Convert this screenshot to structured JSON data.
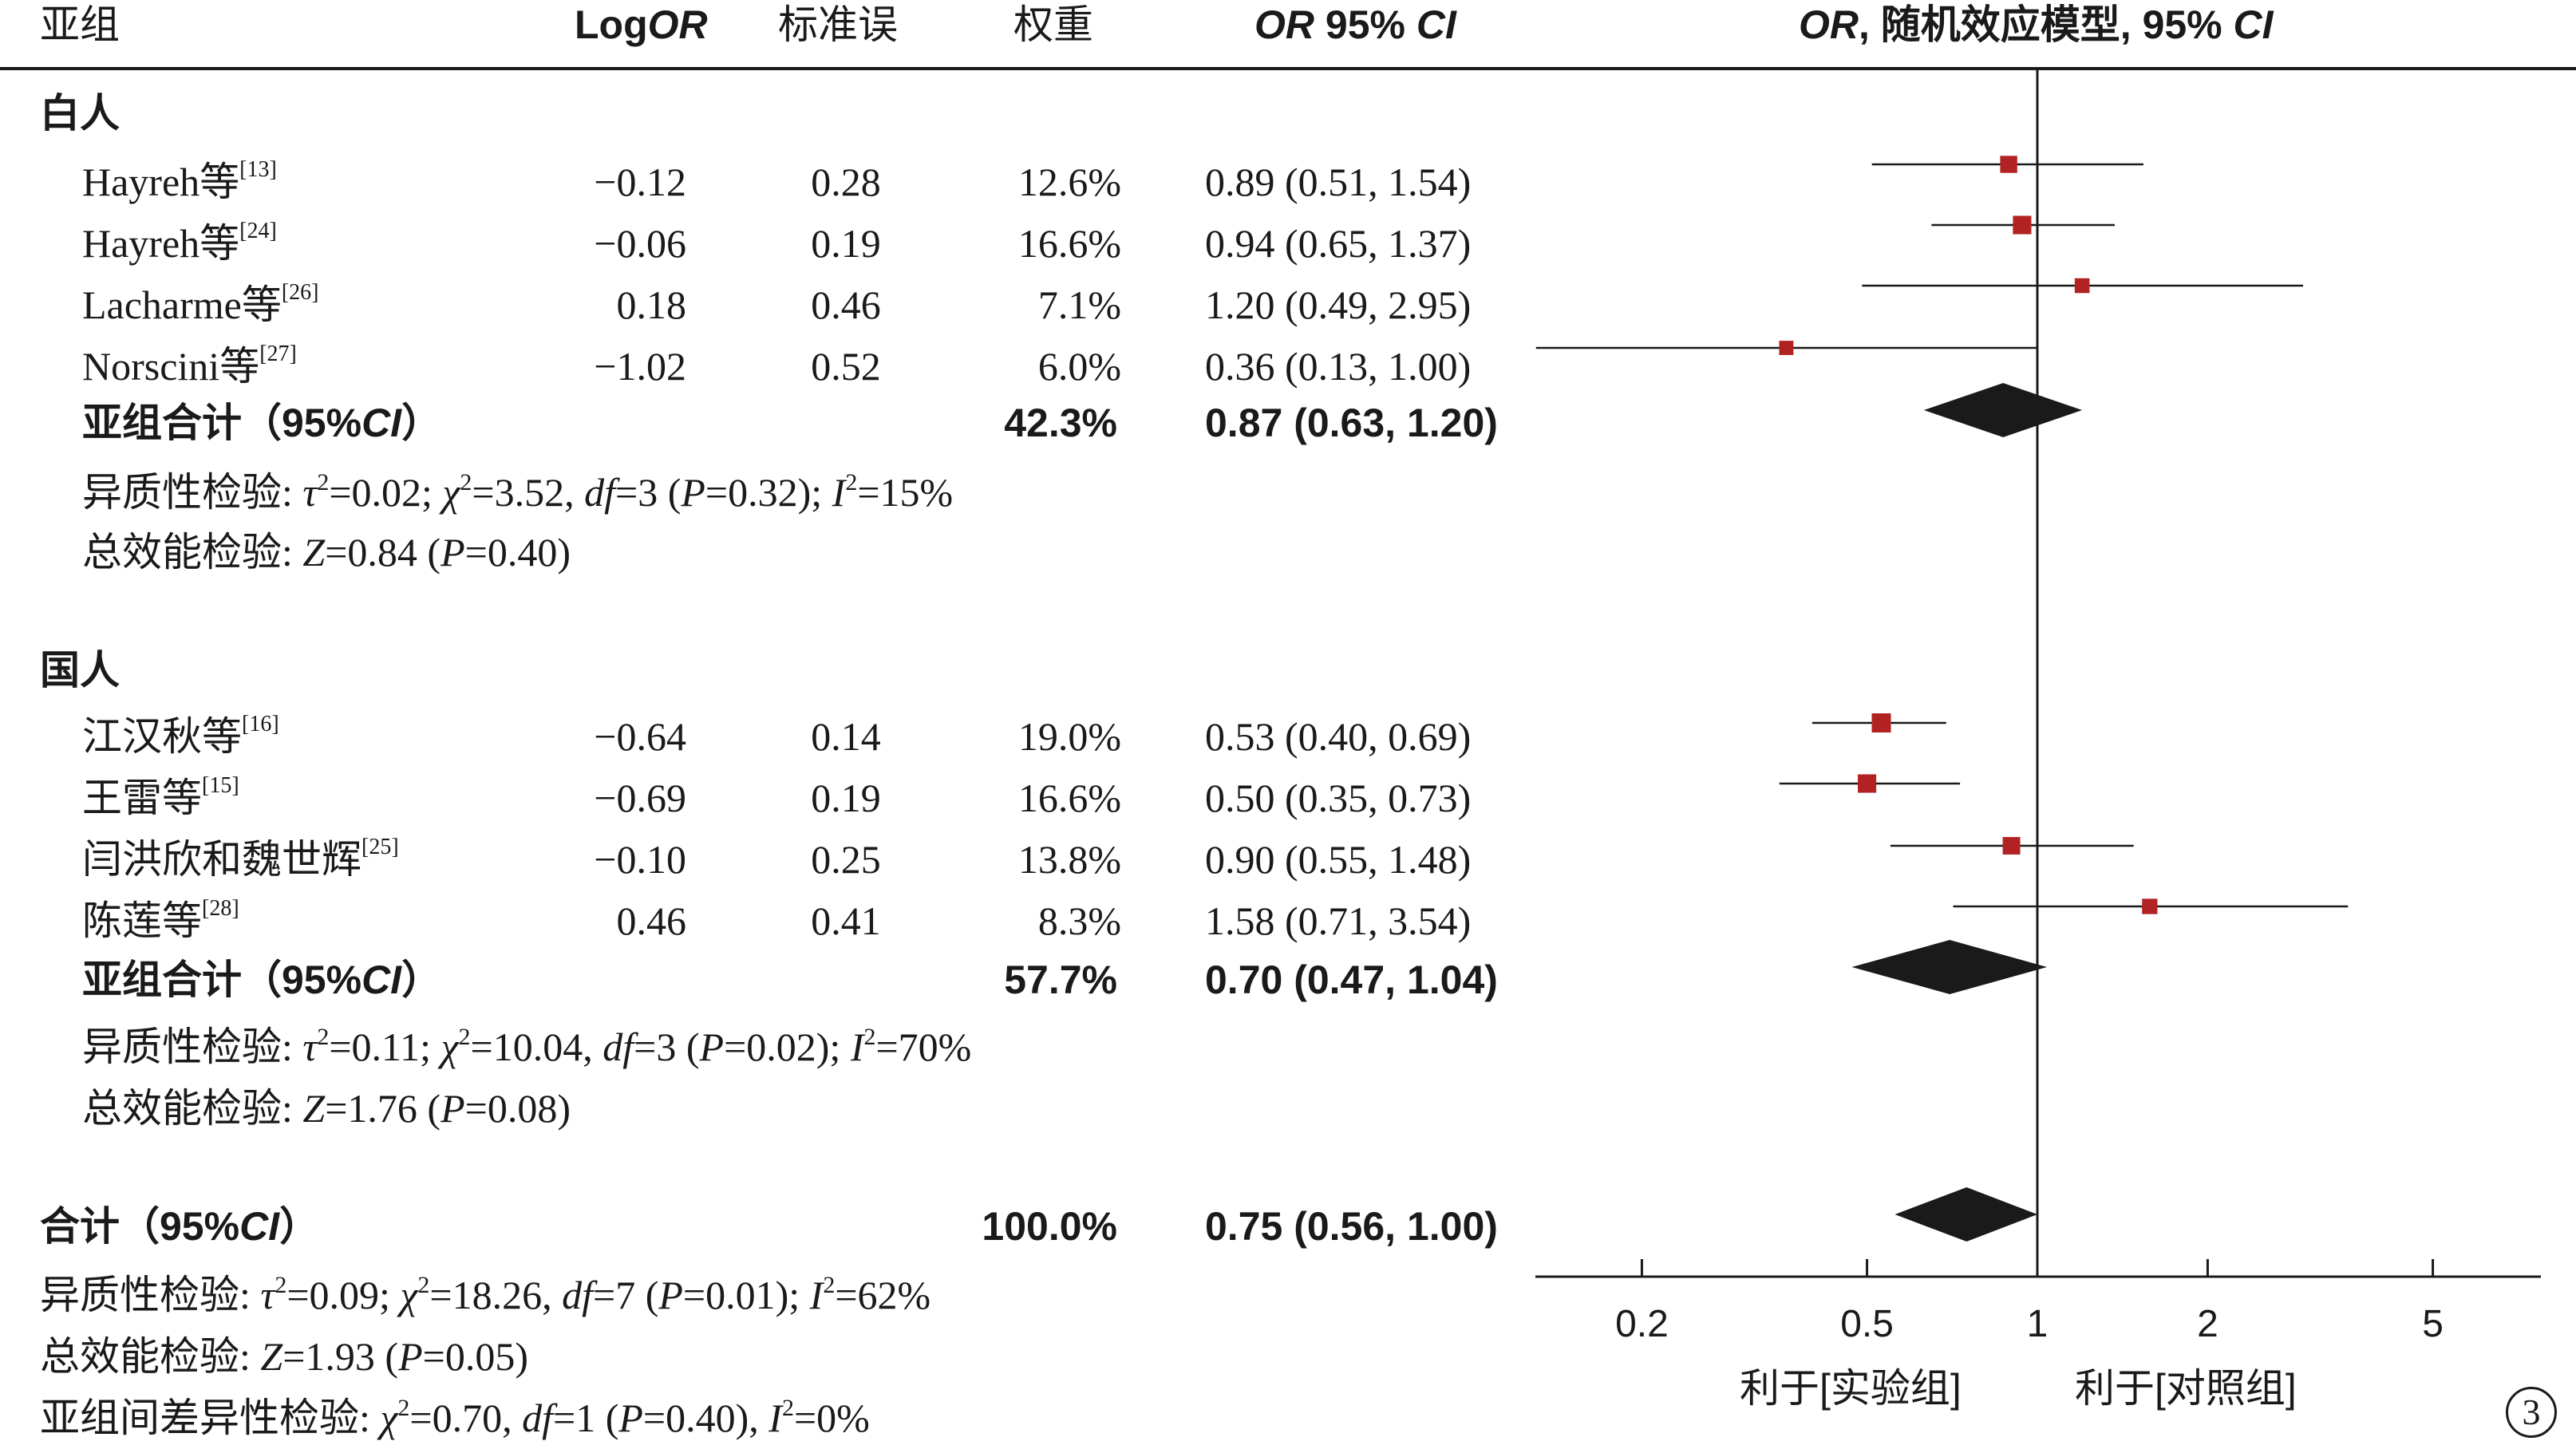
{
  "header": {
    "subgroup": "亚组",
    "logor_prefix": "Log",
    "logor_italic": "OR",
    "se": "标准误",
    "weight": "权重",
    "ci_italic": "OR",
    "ci_rest": " 95% ",
    "ci_ci": "CI",
    "plot_italic": "OR",
    "plot_rest": ", 随机效应模型, 95% ",
    "plot_ci": "CI"
  },
  "groups": [
    {
      "name": "白人",
      "studies": [
        {
          "name": "Hayreh等",
          "ref": "[13]",
          "logor": "−0.12",
          "se": "0.28",
          "weight": "12.6%",
          "ci": "0.89 (0.51, 1.54)"
        },
        {
          "name": "Hayreh等",
          "ref": "[24]",
          "logor": "−0.06",
          "se": "0.19",
          "weight": "16.6%",
          "ci": "0.94 (0.65, 1.37)"
        },
        {
          "name": "Lacharme等",
          "ref": "[26]",
          "logor": "0.18",
          "se": "0.46",
          "weight": "7.1%",
          "ci": "1.20 (0.49, 2.95)"
        },
        {
          "name": "Norscini等",
          "ref": "[27]",
          "logor": "−1.02",
          "se": "0.52",
          "weight": "6.0%",
          "ci": "0.36 (0.13, 1.00)"
        }
      ],
      "subtotal": {
        "label": "亚组合计（95%",
        "ci_italic": "CI",
        "close": "）",
        "weight": "42.3%",
        "ci": "0.87 (0.63, 1.20)"
      },
      "heterogeneity": {
        "prefix": "异质性检验: ",
        "tau": "τ",
        "tau_val": "=0.02; ",
        "chi": "χ",
        "chi_val": "=3.52, ",
        "df": "df",
        "df_val": "=3 (",
        "p": "P",
        "p_val": "=0.32); ",
        "i": "I",
        "i_val": "=15%"
      },
      "overall": {
        "prefix": "总效能检验: ",
        "z": "Z",
        "z_val": "=0.84 (",
        "p": "P",
        "p_val": "=0.40)"
      }
    },
    {
      "name": "国人",
      "studies": [
        {
          "name": "江汉秋等",
          "ref": "[16]",
          "logor": "−0.64",
          "se": "0.14",
          "weight": "19.0%",
          "ci": "0.53 (0.40, 0.69)"
        },
        {
          "name": "王雷等",
          "ref": "[15]",
          "logor": "−0.69",
          "se": "0.19",
          "weight": "16.6%",
          "ci": "0.50 (0.35, 0.73)"
        },
        {
          "name": "闫洪欣和魏世辉",
          "ref": "[25]",
          "logor": "−0.10",
          "se": "0.25",
          "weight": "13.8%",
          "ci": "0.90 (0.55, 1.48)"
        },
        {
          "name": "陈莲等",
          "ref": "[28]",
          "logor": "0.46",
          "se": "0.41",
          "weight": "8.3%",
          "ci": "1.58 (0.71, 3.54)"
        }
      ],
      "subtotal": {
        "label": "亚组合计（95%",
        "ci_italic": "CI",
        "close": "）",
        "weight": "57.7%",
        "ci": "0.70 (0.47, 1.04)"
      },
      "heterogeneity": {
        "prefix": "异质性检验: ",
        "tau": "τ",
        "tau_val": "=0.11; ",
        "chi": "χ",
        "chi_val": "=10.04, ",
        "df": "df",
        "df_val": "=3 (",
        "p": "P",
        "p_val": "=0.02); ",
        "i": "I",
        "i_val": "=70%"
      },
      "overall": {
        "prefix": "总效能检验: ",
        "z": "Z",
        "z_val": "=1.76 (",
        "p": "P",
        "p_val": "=0.08)"
      }
    }
  ],
  "total": {
    "label": "合计（95%",
    "ci_italic": "CI",
    "close": "）",
    "weight": "100.0%",
    "ci": "0.75 (0.56, 1.00)",
    "heterogeneity": {
      "prefix": "异质性检验: ",
      "tau": "τ",
      "tau_val": "=0.09; ",
      "chi": "χ",
      "chi_val": "=18.26, ",
      "df": "df",
      "df_val": "=7 (",
      "p": "P",
      "p_val": "=0.01); ",
      "i": "I",
      "i_val": "=62%"
    },
    "overall": {
      "prefix": "总效能检验: ",
      "z": "Z",
      "z_val": "=1.93 (",
      "p": "P",
      "p_val": "=0.05)"
    },
    "between": {
      "prefix": "亚组间差异性检验: ",
      "chi": "χ",
      "chi_val": "=0.70, ",
      "df": "df",
      "df_val": "=1 (",
      "p": "P",
      "p_val": "=0.40), ",
      "i": "I",
      "i_val": "=0%"
    }
  },
  "axis_labels": {
    "favours_experimental": "利于[实验组]",
    "favours_control": "利于[对照组]"
  },
  "panel_number": "3",
  "colors": {
    "study_marker": "#b22222",
    "diamond": "#1a1a1a",
    "lines": "#1a1a1a"
  },
  "chart_data": {
    "type": "forest",
    "scale": "log",
    "xlim": [
      0.12,
      9.0
    ],
    "reference_line": 1,
    "ticks": [
      0.2,
      0.5,
      1,
      2,
      5
    ],
    "tick_labels": [
      "0.2",
      "0.5",
      "1",
      "2",
      "5"
    ],
    "studies": [
      {
        "group": "白人",
        "or": 0.89,
        "lo": 0.51,
        "hi": 1.54,
        "weight": 12.6
      },
      {
        "group": "白人",
        "or": 0.94,
        "lo": 0.65,
        "hi": 1.37,
        "weight": 16.6
      },
      {
        "group": "白人",
        "or": 1.2,
        "lo": 0.49,
        "hi": 2.95,
        "weight": 7.1
      },
      {
        "group": "白人",
        "or": 0.36,
        "lo": 0.13,
        "hi": 1.0,
        "weight": 6.0
      },
      {
        "group": "国人",
        "or": 0.53,
        "lo": 0.4,
        "hi": 0.69,
        "weight": 19.0
      },
      {
        "group": "国人",
        "or": 0.5,
        "lo": 0.35,
        "hi": 0.73,
        "weight": 16.6
      },
      {
        "group": "国人",
        "or": 0.9,
        "lo": 0.55,
        "hi": 1.48,
        "weight": 13.8
      },
      {
        "group": "国人",
        "or": 1.58,
        "lo": 0.71,
        "hi": 3.54,
        "weight": 8.3
      }
    ],
    "summaries": [
      {
        "label": "白人",
        "or": 0.87,
        "lo": 0.63,
        "hi": 1.2
      },
      {
        "label": "国人",
        "or": 0.7,
        "lo": 0.47,
        "hi": 1.04
      },
      {
        "label": "合计",
        "or": 0.75,
        "lo": 0.56,
        "hi": 1.0
      }
    ]
  }
}
